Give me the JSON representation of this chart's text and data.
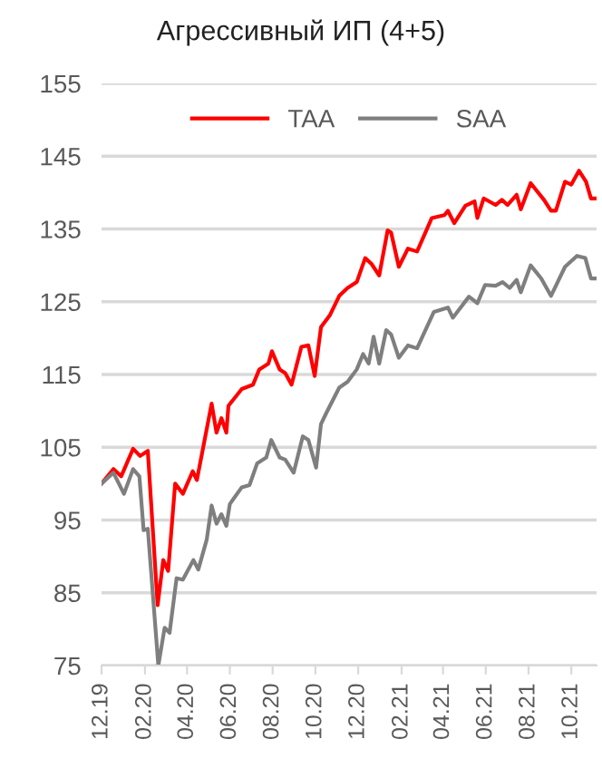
{
  "chart_data": {
    "type": "line",
    "title": "Агрессивный ИП (4+5)",
    "series": [
      {
        "name": "TAA",
        "color": "#ff0000",
        "x": [
          "2019-12-01",
          "2019-12-18",
          "2019-12-29",
          "2020-01-15",
          "2020-01-25",
          "2020-02-05",
          "2020-02-19",
          "2020-02-27",
          "2020-03-05",
          "2020-03-15",
          "2020-03-26",
          "2020-04-09",
          "2020-04-15",
          "2020-05-06",
          "2020-05-13",
          "2020-05-20",
          "2020-05-27",
          "2020-05-30",
          "2020-06-18",
          "2020-07-04",
          "2020-07-13",
          "2020-07-26",
          "2020-07-31",
          "2020-08-11",
          "2020-08-19",
          "2020-08-28",
          "2020-09-11",
          "2020-09-21",
          "2020-09-30",
          "2020-10-09",
          "2020-10-22",
          "2020-11-04",
          "2020-11-16",
          "2020-11-29",
          "2020-12-11",
          "2020-12-20",
          "2020-12-31",
          "2021-01-12",
          "2021-01-17",
          "2021-01-28",
          "2021-02-10",
          "2021-02-23",
          "2021-03-16",
          "2021-04-03",
          "2021-04-08",
          "2021-04-17",
          "2021-05-03",
          "2021-05-16",
          "2021-05-20",
          "2021-05-29",
          "2021-06-15",
          "2021-06-24",
          "2021-07-02",
          "2021-07-15",
          "2021-07-21",
          "2021-08-04",
          "2021-08-23",
          "2021-09-02",
          "2021-09-09",
          "2021-09-22",
          "2021-10-01",
          "2021-10-12",
          "2021-10-22",
          "2021-10-29",
          "2021-11-06"
        ],
        "values": [
          100,
          102,
          101,
          104.8,
          103.8,
          104.5,
          83.3,
          89.5,
          88,
          100,
          98.6,
          101.7,
          100.5,
          111,
          107,
          109,
          107,
          110.7,
          113,
          113.6,
          115.7,
          116.5,
          118.2,
          115.7,
          115.2,
          113.6,
          118.8,
          119,
          114.8,
          121.5,
          123.2,
          125.8,
          126.9,
          127.7,
          131,
          130.2,
          128.6,
          134.8,
          134.5,
          129.8,
          132.3,
          131.9,
          136.5,
          136.9,
          137.5,
          135.8,
          138.2,
          138.8,
          136.5,
          139.2,
          138.3,
          139,
          138.3,
          139.7,
          137.7,
          141.3,
          139,
          137.5,
          137.5,
          141.5,
          141.1,
          143,
          141.5,
          139.2,
          139.2
        ]
      },
      {
        "name": "SAA",
        "color": "#7f7f7f",
        "x": [
          "2019-12-01",
          "2019-12-18",
          "2020-01-02",
          "2020-01-15",
          "2020-01-24",
          "2020-01-30",
          "2020-02-05",
          "2020-02-20",
          "2020-02-29",
          "2020-03-07",
          "2020-03-17",
          "2020-03-26",
          "2020-04-10",
          "2020-04-17",
          "2020-04-29",
          "2020-05-06",
          "2020-05-13",
          "2020-05-20",
          "2020-05-27",
          "2020-06-01",
          "2020-06-18",
          "2020-06-29",
          "2020-07-10",
          "2020-07-23",
          "2020-07-30",
          "2020-08-11",
          "2020-08-19",
          "2020-08-31",
          "2020-09-13",
          "2020-09-21",
          "2020-10-02",
          "2020-10-09",
          "2020-10-17",
          "2020-11-04",
          "2020-11-16",
          "2020-11-29",
          "2020-12-08",
          "2020-12-16",
          "2020-12-23",
          "2020-12-31",
          "2021-01-10",
          "2021-01-17",
          "2021-01-28",
          "2021-02-10",
          "2021-02-23",
          "2021-03-19",
          "2021-04-08",
          "2021-04-15",
          "2021-05-08",
          "2021-05-20",
          "2021-05-31",
          "2021-06-15",
          "2021-06-25",
          "2021-07-05",
          "2021-07-15",
          "2021-07-21",
          "2021-08-04",
          "2021-08-19",
          "2021-09-02",
          "2021-09-22",
          "2021-10-09",
          "2021-10-21",
          "2021-10-29",
          "2021-11-06"
        ],
        "values": [
          100,
          101.5,
          98.6,
          102,
          101,
          93.6,
          93.8,
          75,
          80.2,
          79.5,
          87,
          86.8,
          89.5,
          88.2,
          92.3,
          97,
          94.5,
          95.8,
          94.2,
          97.2,
          99.5,
          99.8,
          102.8,
          103.6,
          106,
          103.6,
          103.3,
          101.5,
          106.5,
          106,
          102.2,
          108.2,
          109.8,
          113.2,
          114,
          115.7,
          117.8,
          116.5,
          120.2,
          116.5,
          121.1,
          120.5,
          117.3,
          119,
          118.6,
          123.6,
          124.2,
          122.8,
          125.7,
          124.8,
          127.3,
          127.2,
          127.7,
          126.9,
          128,
          126.3,
          130,
          128.2,
          125.8,
          129.8,
          131.3,
          131,
          128.2,
          128.2
        ]
      }
    ],
    "xlim": [
      "2019-12-01",
      "2021-11-06"
    ],
    "xticks": [
      {
        "value": "2019-12-01",
        "label": "12.19"
      },
      {
        "value": "2020-02-01",
        "label": "02.20"
      },
      {
        "value": "2020-04-01",
        "label": "04.20"
      },
      {
        "value": "2020-06-01",
        "label": "06.20"
      },
      {
        "value": "2020-08-01",
        "label": "08.20"
      },
      {
        "value": "2020-10-01",
        "label": "10.20"
      },
      {
        "value": "2020-12-01",
        "label": "12.20"
      },
      {
        "value": "2021-02-01",
        "label": "02.21"
      },
      {
        "value": "2021-04-01",
        "label": "04.21"
      },
      {
        "value": "2021-06-01",
        "label": "06.21"
      },
      {
        "value": "2021-08-01",
        "label": "08.21"
      },
      {
        "value": "2021-10-01",
        "label": "10.21"
      }
    ],
    "ylim": [
      75,
      155
    ],
    "yticks": [
      75,
      85,
      95,
      105,
      115,
      125,
      135,
      145,
      155
    ],
    "grid": "y",
    "legend": "top",
    "marker": "none",
    "line_style": "solid"
  }
}
